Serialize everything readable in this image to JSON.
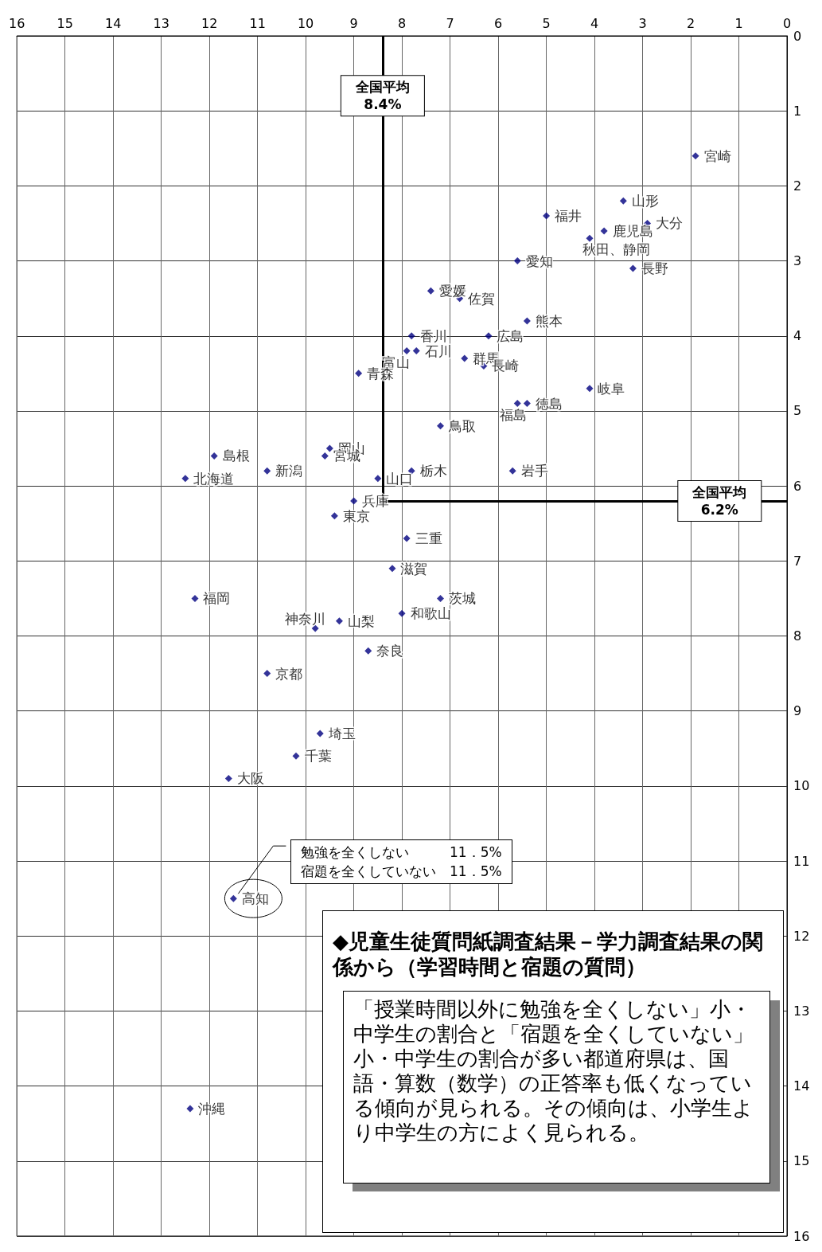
{
  "chart_data": {
    "type": "scatter",
    "title": "◆児童生徒質問紙調査結果－学力調査結果の関係から（学習時間と宿題の質問）",
    "xlim": [
      16,
      0
    ],
    "ylim": [
      16,
      0
    ],
    "xticks": [
      0,
      1,
      2,
      3,
      4,
      5,
      6,
      7,
      8,
      9,
      10,
      11,
      12,
      13,
      14,
      15,
      16
    ],
    "yticks": [
      0,
      1,
      2,
      3,
      4,
      5,
      6,
      7,
      8,
      9,
      10,
      11,
      12,
      13,
      14,
      15,
      16
    ],
    "grid": true,
    "marker": "diamond",
    "series": [
      {
        "color": "#000080",
        "x": [
          1.9,
          3.4,
          2.9,
          5.0,
          3.8,
          4.1,
          5.6,
          3.2,
          7.4,
          6.8,
          5.4,
          7.8,
          6.2,
          7.9,
          7.7,
          6.7,
          6.3,
          8.9,
          4.1,
          5.6,
          5.4,
          7.2,
          9.5,
          9.6,
          11.9,
          10.8,
          12.5,
          7.8,
          5.7,
          8.5,
          9.0,
          9.4,
          7.9,
          8.2,
          12.3,
          7.2,
          8.0,
          9.3,
          9.8,
          8.7,
          10.8,
          9.7,
          10.2,
          11.6,
          11.5,
          12.4
        ],
        "values": [
          1.6,
          2.2,
          2.5,
          2.4,
          2.6,
          2.7,
          3.0,
          3.1,
          3.4,
          3.5,
          3.8,
          4.0,
          4.0,
          4.2,
          4.2,
          4.3,
          4.4,
          4.5,
          4.7,
          4.9,
          4.9,
          5.2,
          5.5,
          5.6,
          5.6,
          5.8,
          5.9,
          5.8,
          5.8,
          5.9,
          6.2,
          6.4,
          6.7,
          7.1,
          7.5,
          7.5,
          7.7,
          7.8,
          7.9,
          8.2,
          8.5,
          9.3,
          9.6,
          9.9,
          11.5,
          14.3
        ],
        "value_labels": [
          "宮崎",
          "山形",
          "大分",
          "福井",
          "鹿児島",
          "秋田、静岡",
          "愛知",
          "長野",
          "愛媛",
          "佐賀",
          "熊本",
          "香川",
          "広島",
          "富山",
          "石川",
          "群馬",
          "長崎",
          "青森",
          "岐阜",
          "福島",
          "徳島",
          "鳥取",
          "岡山",
          "宮城",
          "島根",
          "新潟",
          "北海道",
          "栃木",
          "岩手",
          "山口",
          "兵庫",
          "東京",
          "三重",
          "滋賀",
          "福岡",
          "茨城",
          "和歌山",
          "山梨",
          "神奈川",
          "奈良",
          "京都",
          "埼玉",
          "千葉",
          "大阪",
          "高知",
          "沖縄"
        ]
      }
    ],
    "ref_lines": [
      {
        "axis": "x",
        "value": 8.4,
        "label": "全国平均\n8.4%",
        "color": "#000000"
      },
      {
        "axis": "y",
        "value": 6.2,
        "label": "全国平均\n6.2%",
        "color": "#000000"
      }
    ],
    "annotations": [
      {
        "text": "勉強を全くしない　　　11．5%\n宿題を全くしていない　11．5%",
        "x": 11.5,
        "y": 11.5
      },
      "「授業時間以外に勉強を全くしない」小・中学生の割合と「宿題を全くしていない」小・中学生の割合が多い都道府県は、国語・算数（数学）の正答率も低くなっている傾向が見られる。その傾向は、小学生より中学生の方によく見られる。"
    ]
  }
}
